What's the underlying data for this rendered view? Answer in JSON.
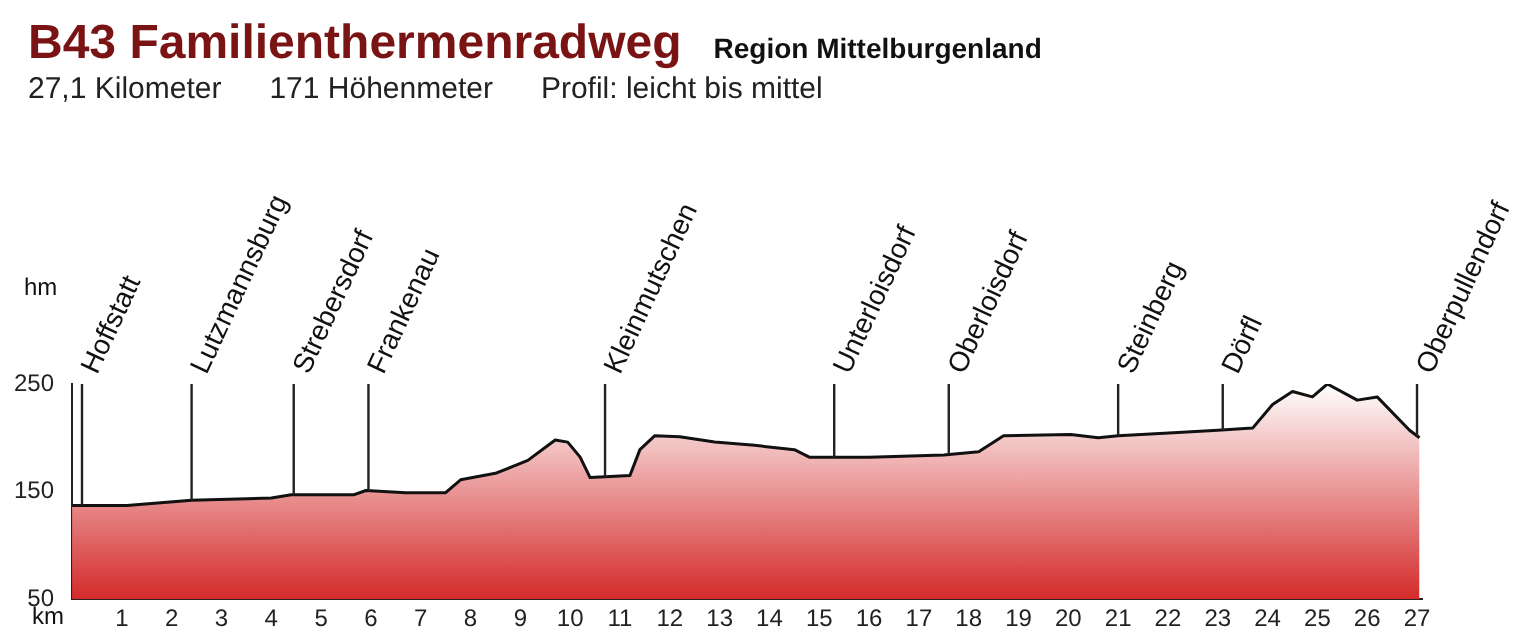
{
  "chart_data": {
    "type": "area",
    "title": "B43 Familienthermenradweg",
    "subtitle": "Region Mittelburgenland",
    "xlabel": "km",
    "ylabel": "hm",
    "annotations": [
      "27,1 Kilometer",
      "171 Höhenmeter",
      "Profil: leicht bis mittel"
    ],
    "ref_lines": [
      {
        "axis": "x",
        "value": 0.2,
        "label": "Hoffstatt"
      },
      {
        "axis": "x",
        "value": 2.4,
        "label": "Lutzmannsburg"
      },
      {
        "axis": "x",
        "value": 4.45,
        "label": "Strebersdorf"
      },
      {
        "axis": "x",
        "value": 5.95,
        "label": "Frankenau"
      },
      {
        "axis": "x",
        "value": 10.7,
        "label": "Kleinmutschen"
      },
      {
        "axis": "x",
        "value": 15.3,
        "label": "Unterloisdorf"
      },
      {
        "axis": "x",
        "value": 17.6,
        "label": "Oberloisdorf"
      },
      {
        "axis": "x",
        "value": 21.0,
        "label": "Steinberg"
      },
      {
        "axis": "x",
        "value": 23.1,
        "label": "Dörfl"
      },
      {
        "axis": "x",
        "value": 27.0,
        "label": "Oberpullendorf"
      }
    ],
    "x": [
      0,
      1.1,
      2.4,
      4.0,
      4.4,
      5.65,
      5.9,
      6.7,
      7.5,
      7.8,
      8.5,
      9.15,
      9.7,
      9.95,
      10.2,
      10.4,
      11.2,
      11.4,
      11.7,
      12.2,
      12.9,
      13.7,
      14.5,
      14.8,
      16.0,
      17.5,
      18.2,
      18.7,
      20.05,
      20.6,
      21.0,
      22.2,
      23.0,
      23.7,
      24.1,
      24.5,
      24.9,
      25.2,
      25.8,
      26.2,
      26.85,
      27.05
    ],
    "series": [
      {
        "color": "#d42a2a",
        "values": [
          137,
          137,
          142,
          144,
          147,
          147,
          151,
          149,
          149,
          161,
          167,
          179,
          198,
          196,
          182,
          163,
          165,
          189,
          202,
          201,
          196,
          193,
          189,
          182,
          182,
          184,
          187,
          202,
          203,
          200,
          202,
          205,
          207,
          209,
          231,
          243,
          238,
          250,
          235,
          238,
          207,
          200
        ]
      }
    ],
    "xlim": [
      0,
      27.1
    ],
    "xticks": [
      1,
      2,
      3,
      4,
      5,
      6,
      7,
      8,
      9,
      10,
      11,
      12,
      13,
      14,
      15,
      16,
      17,
      18,
      19,
      20,
      21,
      22,
      23,
      24,
      25,
      26,
      27
    ],
    "ylim": [
      50,
      250
    ],
    "yticks": [
      50,
      150,
      250
    ],
    "grid": false,
    "legend": false
  }
}
